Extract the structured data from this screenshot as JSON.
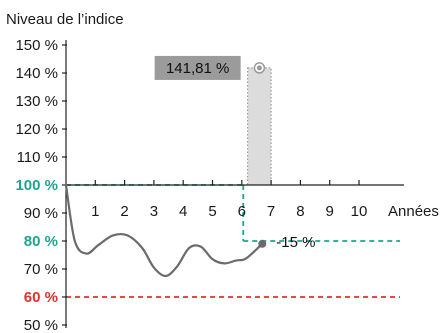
{
  "chart_data": {
    "type": "line",
    "title": "",
    "ylabel": "Niveau de l’indice",
    "xlabel": "Années",
    "ylim": [
      50,
      150
    ],
    "xlim": [
      0,
      11.5
    ],
    "y_ticks": [
      {
        "value": 150,
        "label": "150 %"
      },
      {
        "value": 140,
        "label": "140 %"
      },
      {
        "value": 130,
        "label": "130 %"
      },
      {
        "value": 120,
        "label": "120 %"
      },
      {
        "value": 110,
        "label": "110 %"
      },
      {
        "value": 100,
        "label": "100 %"
      },
      {
        "value": 90,
        "label": "90 %"
      },
      {
        "value": 80,
        "label": "80 %"
      },
      {
        "value": 70,
        "label": "70 %"
      },
      {
        "value": 60,
        "label": "60 %"
      },
      {
        "value": 50,
        "label": "50 %"
      }
    ],
    "x_ticks": [
      {
        "value": 1,
        "label": "1"
      },
      {
        "value": 2,
        "label": "2"
      },
      {
        "value": 3,
        "label": "3"
      },
      {
        "value": 4,
        "label": "4"
      },
      {
        "value": 5,
        "label": "5"
      },
      {
        "value": 6,
        "label": "6"
      },
      {
        "value": 7,
        "label": "7"
      },
      {
        "value": 8,
        "label": "8"
      },
      {
        "value": 9,
        "label": "9"
      },
      {
        "value": 10,
        "label": "10"
      }
    ],
    "series": [
      {
        "color": "#6b6b6b",
        "x": [
          0,
          0.3,
          0.7,
          1.1,
          1.6,
          2.1,
          2.6,
          3.0,
          3.4,
          3.8,
          4.2,
          4.6,
          5.0,
          5.4,
          5.8,
          6.1,
          6.4,
          6.7
        ],
        "y": [
          100,
          80,
          75.5,
          78.5,
          82,
          82,
          77.5,
          70.5,
          67.5,
          71,
          77.5,
          78,
          73.5,
          72,
          73,
          73.5,
          76,
          79
        ]
      }
    ],
    "reference_lines": [
      {
        "value": 100,
        "label": "100 %",
        "color": "#1aa68f",
        "x_end": 6.05
      },
      {
        "value": 80,
        "label": "80 %",
        "color": "#1aa68f",
        "x_start": 6.05
      },
      {
        "value": 60,
        "label": "60 %",
        "color": "#e03030"
      }
    ],
    "highlight_bar": {
      "x_start": 6.2,
      "x_end": 7.0,
      "y_top": 141.81,
      "fill": "#dcdcdc"
    },
    "annotations": [
      {
        "text": "141,81 %",
        "x": 6.6,
        "y": 141.81,
        "style": "dark-box"
      },
      {
        "text": "-15 %",
        "x": 6.7,
        "y": 79,
        "style": "plain"
      }
    ]
  }
}
